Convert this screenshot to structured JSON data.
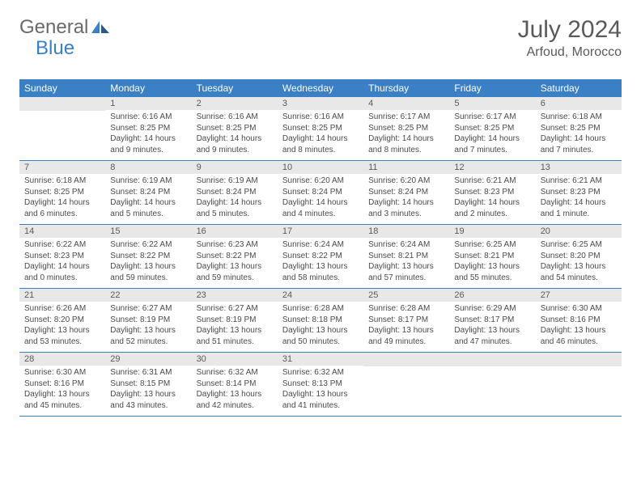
{
  "logo": {
    "text1": "General",
    "text2": "Blue"
  },
  "title": "July 2024",
  "location": "Arfoud, Morocco",
  "colors": {
    "header_bg": "#3b7fc4",
    "daynum_bg": "#e8e8e8",
    "text": "#5a5a5a",
    "border": "#3b7fc4"
  },
  "weekdays": [
    "Sunday",
    "Monday",
    "Tuesday",
    "Wednesday",
    "Thursday",
    "Friday",
    "Saturday"
  ],
  "weeks": [
    [
      null,
      {
        "n": "1",
        "sr": "6:16 AM",
        "ss": "8:25 PM",
        "dl": "14 hours and 9 minutes."
      },
      {
        "n": "2",
        "sr": "6:16 AM",
        "ss": "8:25 PM",
        "dl": "14 hours and 9 minutes."
      },
      {
        "n": "3",
        "sr": "6:16 AM",
        "ss": "8:25 PM",
        "dl": "14 hours and 8 minutes."
      },
      {
        "n": "4",
        "sr": "6:17 AM",
        "ss": "8:25 PM",
        "dl": "14 hours and 8 minutes."
      },
      {
        "n": "5",
        "sr": "6:17 AM",
        "ss": "8:25 PM",
        "dl": "14 hours and 7 minutes."
      },
      {
        "n": "6",
        "sr": "6:18 AM",
        "ss": "8:25 PM",
        "dl": "14 hours and 7 minutes."
      }
    ],
    [
      {
        "n": "7",
        "sr": "6:18 AM",
        "ss": "8:25 PM",
        "dl": "14 hours and 6 minutes."
      },
      {
        "n": "8",
        "sr": "6:19 AM",
        "ss": "8:24 PM",
        "dl": "14 hours and 5 minutes."
      },
      {
        "n": "9",
        "sr": "6:19 AM",
        "ss": "8:24 PM",
        "dl": "14 hours and 5 minutes."
      },
      {
        "n": "10",
        "sr": "6:20 AM",
        "ss": "8:24 PM",
        "dl": "14 hours and 4 minutes."
      },
      {
        "n": "11",
        "sr": "6:20 AM",
        "ss": "8:24 PM",
        "dl": "14 hours and 3 minutes."
      },
      {
        "n": "12",
        "sr": "6:21 AM",
        "ss": "8:23 PM",
        "dl": "14 hours and 2 minutes."
      },
      {
        "n": "13",
        "sr": "6:21 AM",
        "ss": "8:23 PM",
        "dl": "14 hours and 1 minute."
      }
    ],
    [
      {
        "n": "14",
        "sr": "6:22 AM",
        "ss": "8:23 PM",
        "dl": "14 hours and 0 minutes."
      },
      {
        "n": "15",
        "sr": "6:22 AM",
        "ss": "8:22 PM",
        "dl": "13 hours and 59 minutes."
      },
      {
        "n": "16",
        "sr": "6:23 AM",
        "ss": "8:22 PM",
        "dl": "13 hours and 59 minutes."
      },
      {
        "n": "17",
        "sr": "6:24 AM",
        "ss": "8:22 PM",
        "dl": "13 hours and 58 minutes."
      },
      {
        "n": "18",
        "sr": "6:24 AM",
        "ss": "8:21 PM",
        "dl": "13 hours and 57 minutes."
      },
      {
        "n": "19",
        "sr": "6:25 AM",
        "ss": "8:21 PM",
        "dl": "13 hours and 55 minutes."
      },
      {
        "n": "20",
        "sr": "6:25 AM",
        "ss": "8:20 PM",
        "dl": "13 hours and 54 minutes."
      }
    ],
    [
      {
        "n": "21",
        "sr": "6:26 AM",
        "ss": "8:20 PM",
        "dl": "13 hours and 53 minutes."
      },
      {
        "n": "22",
        "sr": "6:27 AM",
        "ss": "8:19 PM",
        "dl": "13 hours and 52 minutes."
      },
      {
        "n": "23",
        "sr": "6:27 AM",
        "ss": "8:19 PM",
        "dl": "13 hours and 51 minutes."
      },
      {
        "n": "24",
        "sr": "6:28 AM",
        "ss": "8:18 PM",
        "dl": "13 hours and 50 minutes."
      },
      {
        "n": "25",
        "sr": "6:28 AM",
        "ss": "8:17 PM",
        "dl": "13 hours and 49 minutes."
      },
      {
        "n": "26",
        "sr": "6:29 AM",
        "ss": "8:17 PM",
        "dl": "13 hours and 47 minutes."
      },
      {
        "n": "27",
        "sr": "6:30 AM",
        "ss": "8:16 PM",
        "dl": "13 hours and 46 minutes."
      }
    ],
    [
      {
        "n": "28",
        "sr": "6:30 AM",
        "ss": "8:16 PM",
        "dl": "13 hours and 45 minutes."
      },
      {
        "n": "29",
        "sr": "6:31 AM",
        "ss": "8:15 PM",
        "dl": "13 hours and 43 minutes."
      },
      {
        "n": "30",
        "sr": "6:32 AM",
        "ss": "8:14 PM",
        "dl": "13 hours and 42 minutes."
      },
      {
        "n": "31",
        "sr": "6:32 AM",
        "ss": "8:13 PM",
        "dl": "13 hours and 41 minutes."
      },
      null,
      null,
      null
    ]
  ],
  "labels": {
    "sunrise": "Sunrise:",
    "sunset": "Sunset:",
    "daylight": "Daylight:"
  }
}
